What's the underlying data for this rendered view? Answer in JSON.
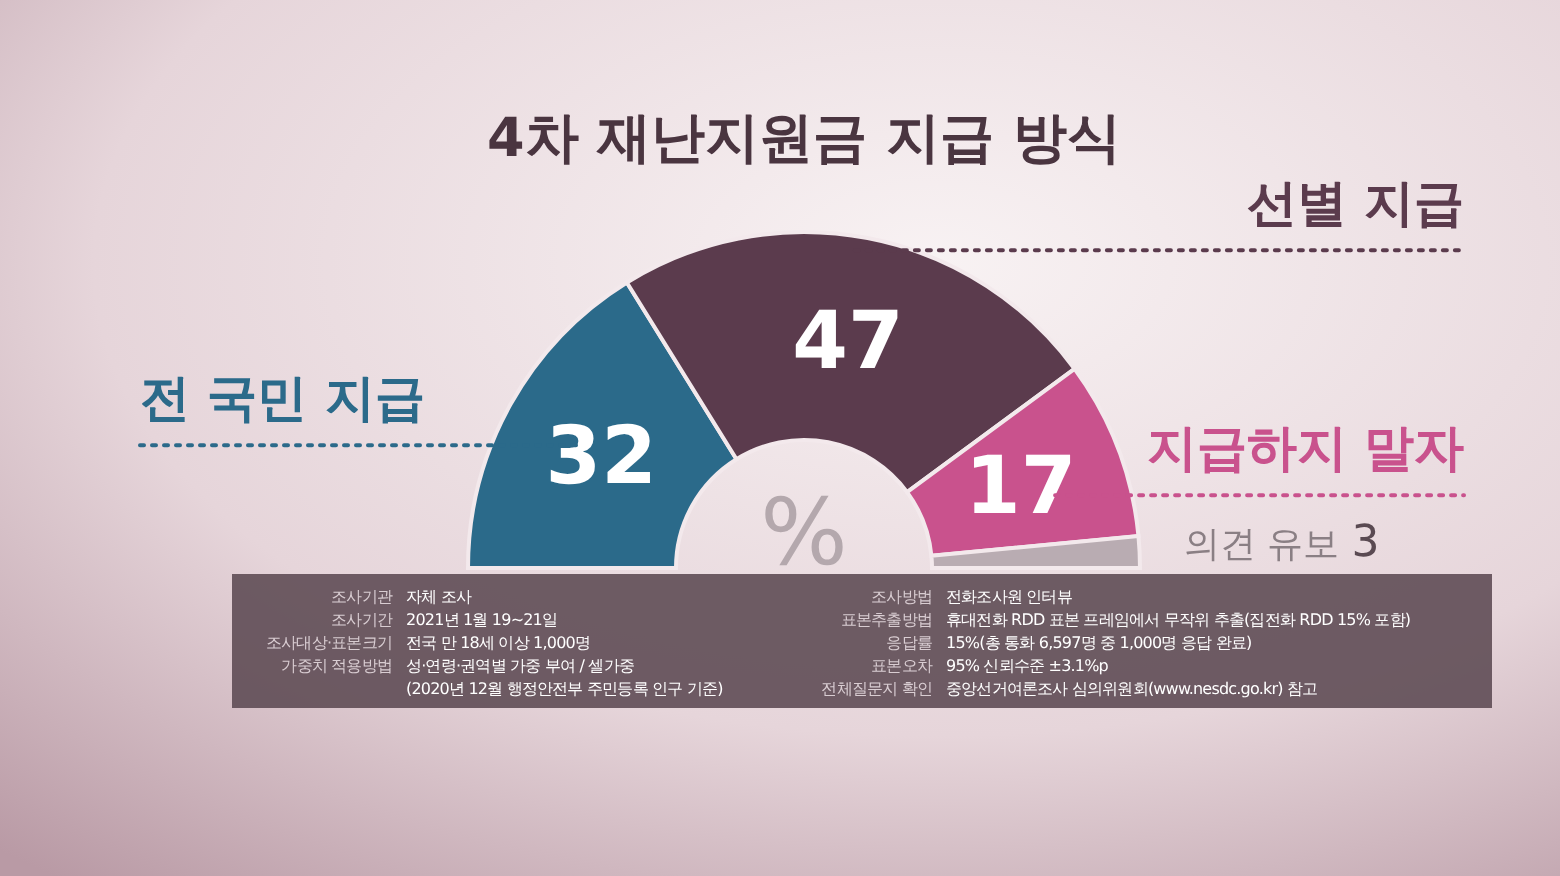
{
  "chart_data": {
    "type": "donut",
    "title": "4차 재난지원금 지급 방식",
    "categories": [
      "전 국민 지급",
      "선별 지급",
      "지급하지 말자",
      "의견 유보"
    ],
    "values": [
      32,
      47,
      17,
      3
    ],
    "colors": [
      "#2b6a8a",
      "#5b3b4d",
      "#c9528d",
      "#b9acb2"
    ],
    "data_labels": true,
    "annotations": [
      "%",
      "조사기관",
      "자체 조사",
      "조사기간",
      "2021년 1월 19~21일",
      "조사대상·표본크기",
      "전국 만 18세 이상 1,000명",
      "가중치 적용방법",
      "성·연령·권역별 가중 부여 / 셀가중\n(2020년 12월 행정안전부 주민등록 인구 기준)",
      "조사방법",
      "전화조사원 인터뷰",
      "표본추출방법",
      "휴대전화 RDD 표본 프레임에서 무작위 추출(집전화 RDD 15% 포함)",
      "응답률",
      "15%(총 통화 6,597명 중 1,000명 응답 완료)",
      "표본오차",
      "95% 신뢰수준 ±3.1%p",
      "전체질문지 확인",
      "중앙선거여론조사 심의위원회(www.nesdc.go.kr) 참고"
    ]
  }
}
